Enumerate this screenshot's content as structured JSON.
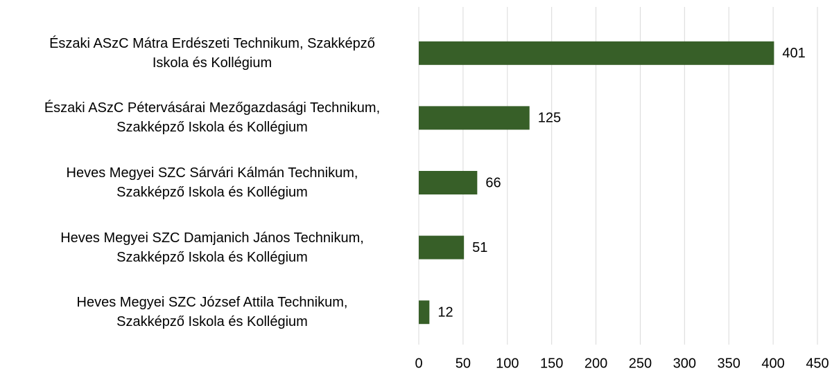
{
  "chart_data": {
    "type": "bar",
    "orientation": "horizontal",
    "categories": [
      "Északi ASzC Mátra Erdészeti Technikum, Szakképző\nIskola és Kollégium",
      "Északi ASzC Pétervásárai Mezőgazdasági Technikum,\nSzakképző Iskola és Kollégium",
      "Heves Megyei SZC Sárvári Kálmán Technikum,\nSzakképző Iskola és Kollégium",
      "Heves Megyei SZC Damjanich János Technikum,\nSzakképző Iskola és Kollégium",
      "Heves Megyei SZC József Attila Technikum,\nSzakképző Iskola és Kollégium"
    ],
    "values": [
      401,
      125,
      66,
      51,
      12
    ],
    "color": "#375f28",
    "xlim": [
      0,
      450
    ],
    "xticks": [
      0,
      50,
      100,
      150,
      200,
      250,
      300,
      350,
      400,
      450
    ],
    "grid": true
  }
}
